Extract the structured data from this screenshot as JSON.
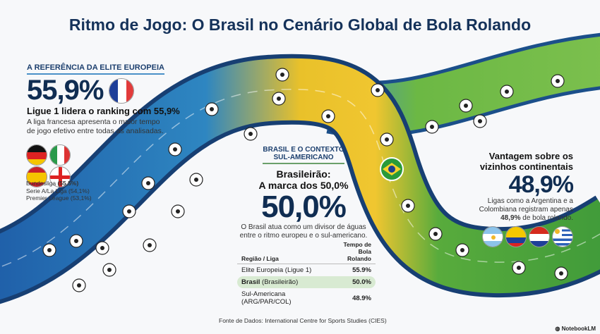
{
  "title": "Ritmo de Jogo: O Brasil no Cenário Global de Bola Rolando",
  "europe": {
    "kicker": "A REFERÊNCIA DA ELITE EUROPEIA",
    "value": "55,9%",
    "headline": "Ligue 1 lidera o ranking com 55,9%",
    "description": "A liga francesa apresenta o maior tempo de jogo efetivo entre todas as analisadas.",
    "flags": [
      "france-flag-icon",
      "germany-flag-icon",
      "italy-flag-icon",
      "spain-flag-icon",
      "england-flag-icon"
    ],
    "leagues": [
      {
        "name": "Bundesliga",
        "value": "(55,5%)"
      },
      {
        "name": "Serie A/La Liga",
        "value": "(54,1%)"
      },
      {
        "name": "Premier League",
        "value": "(53,1%)"
      }
    ]
  },
  "brazil": {
    "kicker_line1": "BRASIL E O CONTEXTO",
    "kicker_line2": "SUL-AMERICANO",
    "headline_line1": "Brasileirão:",
    "headline_line2": "A marca dos 50,0%",
    "value": "50,0%",
    "description_line1": "O Brasil atua como um divisor de águas",
    "description_line2": "entre o ritmo europeu e o sul-americano.",
    "table": {
      "col1": "Região / Liga",
      "col2_line1": "Tempo de",
      "col2_line2": "Bola Rolando",
      "rows": [
        {
          "bold": "",
          "label": "Elite Europeia (Ligue 1)",
          "value": "55.9%"
        },
        {
          "bold": "Brasil",
          "label": " (Brasileirão)",
          "value": "50.0%"
        },
        {
          "bold": "",
          "label": "Sul-Americana (ARG/PAR/COL)",
          "value": "48.9%"
        }
      ]
    }
  },
  "south_america": {
    "headline_line1": "Vantagem sobre os",
    "headline_line2": "vizinhos continentais",
    "value": "48,9%",
    "description_line1": "Ligas como a Argentina e a",
    "description_line2": "Colombiana registram apenas",
    "description_bold": "48,9%",
    "description_end": " de bola rolando.",
    "flags": [
      "argentina-flag-icon",
      "colombia-flag-icon",
      "paraguay-flag-icon",
      "uruguay-flag-icon"
    ]
  },
  "footer": {
    "source": "Fonte de Dados: International Centre for Sports Studies (CIES)",
    "brand": "NotebookLM"
  },
  "colors": {
    "navy": "#102d52",
    "road_blue": "#2f6fb3",
    "road_yellow": "#f2c52b",
    "field_green": "#4fa83a",
    "highlight": "#d8ead2"
  }
}
